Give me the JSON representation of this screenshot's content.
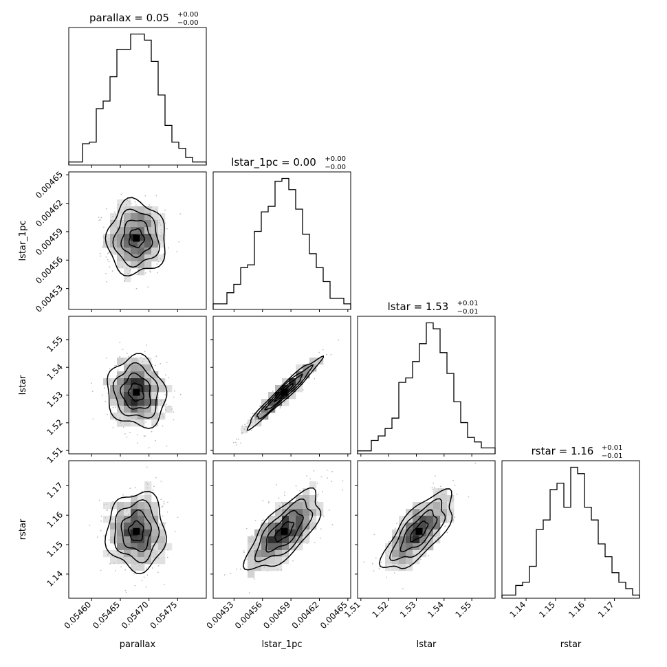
{
  "chart_data": {
    "type": "corner",
    "parameters": [
      "parallax",
      "lstar_1pc",
      "lstar",
      "rstar"
    ],
    "titles": [
      {
        "name": "parallax",
        "median": "0.05",
        "plus": "+0.00",
        "minus": "−0.00"
      },
      {
        "name": "lstar_1pc",
        "median": "0.00",
        "plus": "+0.00",
        "minus": "−0.00"
      },
      {
        "name": "lstar",
        "median": "1.53",
        "plus": "+0.01",
        "minus": "−0.01"
      },
      {
        "name": "rstar",
        "median": "1.16",
        "plus": "+0.01",
        "minus": "−0.01"
      }
    ],
    "axis_labels": [
      "parallax",
      "lstar_1pc",
      "lstar",
      "rstar"
    ],
    "ranges": [
      [
        0.05456,
        0.0548
      ],
      [
        0.004508,
        0.004653
      ],
      [
        1.5088,
        1.5584
      ],
      [
        1.1318,
        1.1785
      ]
    ],
    "ticks": [
      [
        "0.05460",
        "0.05465",
        "0.05470",
        "0.05475"
      ],
      [
        "0.00453",
        "0.00456",
        "0.00459",
        "0.00462",
        "0.00465"
      ],
      [
        "1.51",
        "1.52",
        "1.53",
        "1.54",
        "1.55"
      ],
      [
        "1.14",
        "1.15",
        "1.16",
        "1.17"
      ]
    ],
    "tick_values": [
      [
        0.0546,
        0.05465,
        0.0547,
        0.05475
      ],
      [
        0.00453,
        0.00456,
        0.00459,
        0.00462,
        0.00465
      ],
      [
        1.51,
        1.52,
        1.53,
        1.54,
        1.55
      ],
      [
        1.14,
        1.15,
        1.16,
        1.17
      ]
    ],
    "histograms": [
      [
        2,
        2,
        14,
        15,
        37,
        42,
        58,
        76,
        76,
        86,
        86,
        82,
        68,
        46,
        26,
        15,
        11,
        5,
        2,
        2
      ],
      [
        4,
        4,
        12,
        18,
        30,
        32,
        56,
        70,
        74,
        92,
        94,
        86,
        72,
        54,
        40,
        30,
        20,
        8,
        8,
        4
      ],
      [
        2,
        2,
        9,
        12,
        17,
        24,
        48,
        51,
        62,
        74,
        88,
        84,
        68,
        54,
        35,
        21,
        11,
        8,
        4,
        4
      ],
      [
        2,
        2,
        8,
        10,
        20,
        43,
        49,
        68,
        72,
        57,
        82,
        78,
        57,
        49,
        34,
        26,
        16,
        10,
        6,
        2
      ]
    ],
    "correlations": {
      "1-0": 0.0,
      "2-0": -0.1,
      "2-1": 0.97,
      "3-0": 0.0,
      "3-1": 0.7,
      "3-2": 0.72
    },
    "spreads": [
      2.55e-05,
      1.93e-05,
      0.0063,
      0.0066
    ],
    "centers": [
      0.054678,
      0.004583,
      1.531,
      1.1545
    ],
    "colors": {
      "line": "#000000",
      "background": "#ffffff"
    }
  }
}
